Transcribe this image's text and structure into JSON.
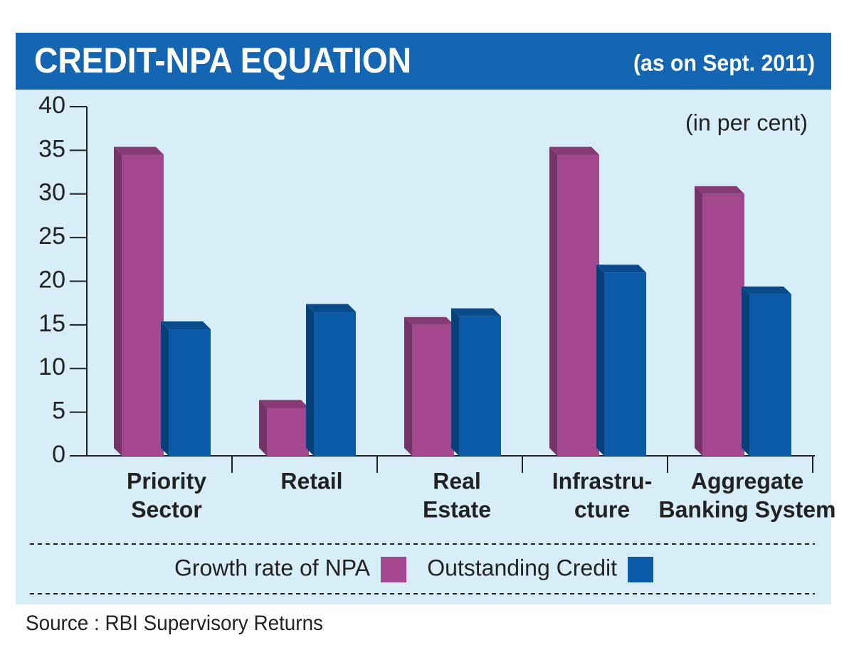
{
  "chart_data": {
    "type": "bar3d",
    "title": "CREDIT-NPA EQUATION",
    "subtitle": "(as on Sept. 2011)",
    "unit_label": "(in per cent)",
    "source": "Source : RBI Supervisory Returns",
    "categories": [
      [
        "Priority",
        "Sector"
      ],
      [
        "Retail"
      ],
      [
        "Real",
        "Estate"
      ],
      [
        "Infrastru-",
        "cture"
      ],
      [
        "Aggregate",
        "Banking System"
      ]
    ],
    "series": [
      {
        "name": "Growth rate of NPA",
        "color": "#a3488f",
        "values": [
          34.5,
          5.5,
          15,
          34.5,
          30
        ]
      },
      {
        "name": "Outstanding Credit",
        "color": "#0b5aa8",
        "values": [
          14.5,
          16.5,
          16,
          21,
          18.5
        ]
      }
    ],
    "ylim": [
      0,
      40
    ],
    "yticks": [
      0,
      5,
      10,
      15,
      20,
      25,
      30,
      35,
      40
    ]
  }
}
